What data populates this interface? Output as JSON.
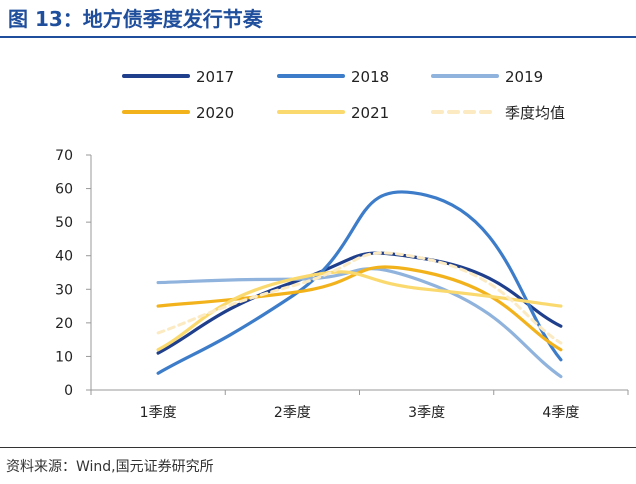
{
  "header": {
    "title": "图 13：地方债季度发行节奏"
  },
  "footer": {
    "source": "资料来源：Wind,国元证券研究所"
  },
  "chart_data": {
    "type": "line",
    "categories": [
      "1季度",
      "2季度",
      "3季度",
      "4季度"
    ],
    "ylim": [
      0,
      70
    ],
    "yticks": [
      0,
      10,
      20,
      30,
      40,
      50,
      60,
      70
    ],
    "grid": false,
    "legend_position": "top",
    "series": [
      {
        "name": "2017",
        "color": "#1f3f8c",
        "style": "solid",
        "values": [
          11,
          32,
          39,
          19
        ]
      },
      {
        "name": "2018",
        "color": "#3d7cc9",
        "style": "solid",
        "values": [
          5,
          28,
          58,
          9
        ]
      },
      {
        "name": "2019",
        "color": "#8fb3dd",
        "style": "solid",
        "values": [
          32,
          33,
          32,
          4
        ]
      },
      {
        "name": "2020",
        "color": "#f2b21c",
        "style": "solid",
        "values": [
          25,
          29,
          35,
          12
        ]
      },
      {
        "name": "2021",
        "color": "#fad96e",
        "style": "solid",
        "values": [
          12,
          33,
          30,
          25
        ]
      },
      {
        "name": "季度均值",
        "color": "#fbeac2",
        "style": "dashed",
        "values": [
          17,
          31,
          39,
          14
        ]
      }
    ]
  }
}
